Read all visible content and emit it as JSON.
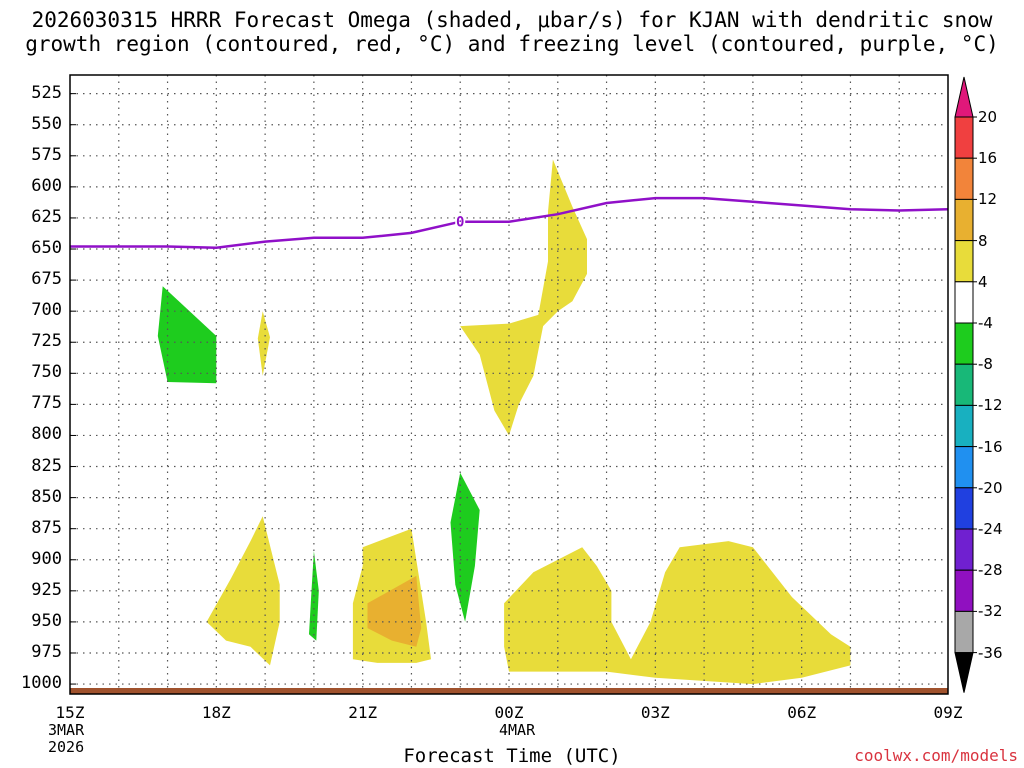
{
  "chart_data": {
    "type": "heatmap",
    "title_line1": "2026030315 HRRR Forecast Omega (shaded, μbar/s) for KJAN with dendritic snow",
    "title_line2": "growth region (contoured, red, °C) and freezing level (contoured, purple, °C)",
    "xlabel": "Forecast Time (UTC)",
    "credit": "coolwx.com/models",
    "x_range_hours": [
      0,
      18
    ],
    "x_ticks": [
      {
        "hour": 0,
        "label": "15Z",
        "sub1": "3MAR",
        "sub2": "2026"
      },
      {
        "hour": 3,
        "label": "18Z"
      },
      {
        "hour": 6,
        "label": "21Z"
      },
      {
        "hour": 9,
        "label": "00Z",
        "sub1": "4MAR"
      },
      {
        "hour": 12,
        "label": "03Z"
      },
      {
        "hour": 15,
        "label": "06Z"
      },
      {
        "hour": 18,
        "label": "09Z"
      }
    ],
    "y_levels_mb": [
      "525",
      "550",
      "575",
      "600",
      "625",
      "650",
      "675",
      "700",
      "725",
      "750",
      "775",
      "800",
      "825",
      "850",
      "875",
      "900",
      "925",
      "950",
      "975",
      "1000"
    ],
    "y_range_mb": [
      510,
      1008
    ],
    "colorbar": {
      "levels": [
        "20",
        "16",
        "12",
        "8",
        "4",
        "-4",
        "-8",
        "-12",
        "-16",
        "-20",
        "-24",
        "-28",
        "-32",
        "-36"
      ],
      "colors": [
        "#e0187a",
        "#f04040",
        "#f2843a",
        "#e8b030",
        "#e8dc3a",
        "#ffffff",
        "#1ecc1e",
        "#18b878",
        "#18b0c0",
        "#2090f0",
        "#2040e0",
        "#7020d0",
        "#9010c0",
        "#a8a8a8",
        "#000000"
      ]
    },
    "freezing_level": {
      "color": "#9010c8",
      "label": "0",
      "label_point": {
        "hour": 8.0,
        "mb": 628
      },
      "points": [
        {
          "hour": 0,
          "mb": 648
        },
        {
          "hour": 2,
          "mb": 648
        },
        {
          "hour": 3,
          "mb": 649
        },
        {
          "hour": 4,
          "mb": 644
        },
        {
          "hour": 5,
          "mb": 641
        },
        {
          "hour": 6,
          "mb": 641
        },
        {
          "hour": 7,
          "mb": 637
        },
        {
          "hour": 8,
          "mb": 628
        },
        {
          "hour": 9,
          "mb": 628
        },
        {
          "hour": 10,
          "mb": 622
        },
        {
          "hour": 11,
          "mb": 613
        },
        {
          "hour": 12,
          "mb": 609
        },
        {
          "hour": 13,
          "mb": 609
        },
        {
          "hour": 14,
          "mb": 612
        },
        {
          "hour": 15,
          "mb": 615
        },
        {
          "hour": 16,
          "mb": 618
        },
        {
          "hour": 17,
          "mb": 619
        },
        {
          "hour": 18,
          "mb": 618
        }
      ]
    },
    "omega_regions": [
      {
        "name": "green-region-17z",
        "value_range": "-8 to -4",
        "color": "#1ecc1e",
        "points": [
          [
            1.9,
            680
          ],
          [
            3.0,
            720
          ],
          [
            3.0,
            758
          ],
          [
            2.0,
            757
          ],
          [
            1.8,
            720
          ]
        ]
      },
      {
        "name": "yellow-region-19z-mid",
        "value_range": "4 to 8",
        "color": "#e8dc3a",
        "points": [
          [
            3.95,
            700
          ],
          [
            4.1,
            721
          ],
          [
            3.95,
            752
          ],
          [
            3.85,
            722
          ]
        ]
      },
      {
        "name": "yellow-region-00z-upper",
        "value_range": "4 to 8",
        "color": "#e8dc3a",
        "points": [
          [
            9.9,
            578
          ],
          [
            10.3,
            616
          ],
          [
            10.6,
            642
          ],
          [
            10.6,
            670
          ],
          [
            10.3,
            692
          ],
          [
            10.0,
            700
          ],
          [
            9.7,
            712
          ],
          [
            9.5,
            752
          ],
          [
            9.2,
            775
          ],
          [
            9.0,
            800
          ],
          [
            8.7,
            780
          ],
          [
            8.4,
            735
          ],
          [
            8.0,
            712
          ],
          [
            9.0,
            710
          ],
          [
            9.6,
            703
          ],
          [
            9.8,
            660
          ],
          [
            9.8,
            620
          ]
        ]
      },
      {
        "name": "yellow-region-18z-low",
        "value_range": "4 to 8",
        "color": "#e8dc3a",
        "points": [
          [
            3.95,
            865
          ],
          [
            4.3,
            920
          ],
          [
            4.3,
            950
          ],
          [
            4.1,
            985
          ],
          [
            3.7,
            970
          ],
          [
            3.2,
            965
          ],
          [
            2.8,
            950
          ],
          [
            3.3,
            915
          ],
          [
            3.7,
            885
          ]
        ]
      },
      {
        "name": "green-region-20z-low",
        "value_range": "-8 to -4",
        "color": "#1ecc1e",
        "points": [
          [
            5.0,
            893
          ],
          [
            5.1,
            925
          ],
          [
            5.05,
            965
          ],
          [
            4.9,
            960
          ],
          [
            4.95,
            925
          ]
        ]
      },
      {
        "name": "yellow-region-21z-low",
        "value_range": "4 to 8",
        "color": "#e8dc3a",
        "points": [
          [
            6.0,
            890
          ],
          [
            7.0,
            875
          ],
          [
            7.3,
            950
          ],
          [
            7.4,
            980
          ],
          [
            7.1,
            983
          ],
          [
            6.3,
            983
          ],
          [
            5.8,
            980
          ],
          [
            5.8,
            935
          ],
          [
            6.0,
            905
          ]
        ]
      },
      {
        "name": "orange-region-22z-low",
        "value_range": "8 to 12",
        "color": "#e8b030",
        "points": [
          [
            6.1,
            935
          ],
          [
            7.1,
            913
          ],
          [
            7.2,
            955
          ],
          [
            7.1,
            970
          ],
          [
            6.6,
            965
          ],
          [
            6.1,
            955
          ]
        ]
      },
      {
        "name": "green-region-23z-low",
        "value_range": "-8 to -4",
        "color": "#1ecc1e",
        "points": [
          [
            8.0,
            830
          ],
          [
            8.4,
            860
          ],
          [
            8.3,
            905
          ],
          [
            8.1,
            950
          ],
          [
            7.9,
            920
          ],
          [
            7.8,
            870
          ]
        ]
      },
      {
        "name": "yellow-region-01z-03z-low",
        "value_range": "4 to 8",
        "color": "#e8dc3a",
        "points": [
          [
            8.9,
            935
          ],
          [
            9.5,
            910
          ],
          [
            10.5,
            890
          ],
          [
            10.8,
            905
          ],
          [
            11.1,
            925
          ],
          [
            11.1,
            950
          ],
          [
            11.5,
            980
          ],
          [
            11.9,
            950
          ],
          [
            12.2,
            910
          ],
          [
            12.5,
            890
          ],
          [
            13.5,
            885
          ],
          [
            14.0,
            890
          ],
          [
            14.8,
            930
          ],
          [
            15.6,
            960
          ],
          [
            16.0,
            970
          ],
          [
            16.0,
            985
          ],
          [
            15.0,
            995
          ],
          [
            14.0,
            1000
          ],
          [
            12.0,
            995
          ],
          [
            11.0,
            990
          ],
          [
            10.0,
            990
          ],
          [
            9.0,
            990
          ],
          [
            8.9,
            970
          ]
        ]
      }
    ],
    "surface_terrain_color": "#a0522d"
  }
}
